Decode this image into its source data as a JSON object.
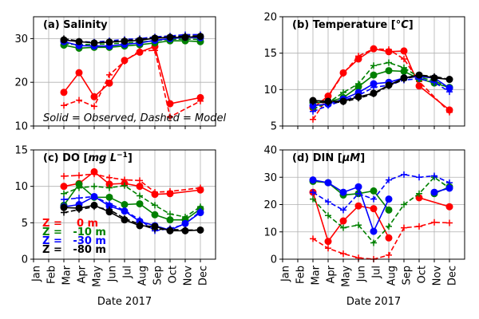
{
  "colors": {
    "z0": "#ff0000",
    "z10": "#008000",
    "z30": "#0000ff",
    "z80": "#000000",
    "grid": "#b0b0b0"
  },
  "figure": {
    "note": "Solid = Observed, Dashed = Model",
    "legend": [
      {
        "label": "Z =    0 m",
        "color_key": "z0"
      },
      {
        "label": "Z =   -10 m",
        "color_key": "z10"
      },
      {
        "label": "Z =   -30 m",
        "color_key": "z30"
      },
      {
        "label": "Z =   -80 m",
        "color_key": "z80"
      }
    ],
    "month_labels": [
      "Jan",
      "Feb",
      "Mar",
      "Apr",
      "May",
      "Jun",
      "Jul",
      "Aug",
      "Sep",
      "Oct",
      "Nov",
      "Dec"
    ]
  },
  "chart_data": [
    {
      "type": "line",
      "title": "(a) Salinity",
      "title_parts": [
        "(a) Salinity"
      ],
      "xlabel": "",
      "ylabel": "",
      "ylim": [
        10,
        35
      ],
      "yticks": [
        10,
        20,
        30
      ],
      "grid": true,
      "series": [
        {
          "color_key": "z0",
          "style": "observed",
          "x": [
            3,
            4,
            5,
            6,
            7,
            8,
            9,
            10,
            12
          ],
          "y": [
            17.7,
            22.2,
            16.7,
            19.8,
            25.0,
            26.9,
            28.2,
            15.1,
            16.5
          ]
        },
        {
          "color_key": "z0",
          "style": "model",
          "x": [
            3,
            4,
            5,
            6,
            7,
            8,
            9,
            10,
            12
          ],
          "y": [
            14.7,
            15.9,
            14.5,
            21.7,
            24.8,
            27.2,
            27.3,
            12.1,
            15.7
          ]
        },
        {
          "color_key": "z10",
          "style": "observed",
          "x": [
            3,
            4,
            5,
            6,
            7,
            8,
            9,
            10,
            11,
            12
          ],
          "y": [
            28.5,
            27.8,
            28.0,
            28.0,
            28.3,
            28.6,
            29.0,
            29.5,
            29.5,
            29.3
          ]
        },
        {
          "color_key": "z10",
          "style": "model",
          "x": [
            3,
            4,
            5,
            6,
            7,
            8,
            9,
            10,
            11,
            12
          ],
          "y": [
            28.8,
            28.6,
            28.7,
            28.8,
            29.0,
            29.2,
            29.5,
            29.8,
            29.9,
            29.8
          ]
        },
        {
          "color_key": "z30",
          "style": "observed",
          "x": [
            3,
            4,
            5,
            6,
            7,
            8,
            9,
            10,
            11,
            12
          ],
          "y": [
            29.3,
            28.4,
            28.3,
            28.3,
            28.7,
            29.0,
            29.6,
            30.0,
            30.3,
            30.2
          ]
        },
        {
          "color_key": "z30",
          "style": "model",
          "x": [
            3,
            4,
            5,
            6,
            7,
            8,
            9,
            10,
            11,
            12
          ],
          "y": [
            29.8,
            29.3,
            29.2,
            29.5,
            29.8,
            30.0,
            30.4,
            30.6,
            30.9,
            30.9
          ]
        },
        {
          "color_key": "z80",
          "style": "observed",
          "x": [
            3,
            4,
            5,
            6,
            7,
            8,
            9,
            10,
            11,
            12
          ],
          "y": [
            29.7,
            29.3,
            29.0,
            29.2,
            29.4,
            29.6,
            30.1,
            30.3,
            30.3,
            30.5
          ]
        },
        {
          "color_key": "z80",
          "style": "model",
          "x": [
            3,
            4,
            5,
            6,
            7,
            8,
            9,
            10,
            11,
            12
          ],
          "y": [
            30.0,
            29.4,
            29.0,
            29.3,
            29.6,
            29.8,
            30.2,
            30.4,
            30.6,
            30.6
          ]
        }
      ]
    },
    {
      "type": "line",
      "title": "(b) Temperature [°C]",
      "title_parts": [
        "(b) Temperature [",
        "°C",
        "]"
      ],
      "xlabel": "",
      "ylabel": "",
      "ylim": [
        5,
        20
      ],
      "yticks": [
        5,
        10,
        15,
        20
      ],
      "grid": true,
      "series": [
        {
          "color_key": "z0",
          "style": "observed",
          "x": [
            3,
            4,
            5,
            6,
            7,
            8,
            9,
            10,
            12
          ],
          "y": [
            7.5,
            9.1,
            12.3,
            14.2,
            15.6,
            15.2,
            15.3,
            10.5,
            7.2
          ]
        },
        {
          "color_key": "z0",
          "style": "model",
          "x": [
            3,
            4,
            5,
            6,
            7,
            8,
            9,
            10,
            12
          ],
          "y": [
            5.9,
            9.0,
            12.2,
            14.6,
            15.6,
            15.5,
            14.2,
            11.1,
            6.9
          ]
        },
        {
          "color_key": "z10",
          "style": "observed",
          "x": [
            3,
            4,
            5,
            6,
            7,
            8,
            9,
            10,
            11,
            12
          ],
          "y": [
            8.2,
            8.3,
            8.9,
            10.4,
            12.0,
            12.6,
            12.5,
            11.5,
            10.9,
            10.3
          ]
        },
        {
          "color_key": "z10",
          "style": "model",
          "x": [
            3,
            4,
            5,
            6,
            7,
            8,
            9,
            10,
            11,
            12
          ],
          "y": [
            7.3,
            8.2,
            9.6,
            10.8,
            13.3,
            13.7,
            13.0,
            11.7,
            11.2,
            10.3
          ]
        },
        {
          "color_key": "z30",
          "style": "observed",
          "x": [
            3,
            4,
            5,
            6,
            7,
            8,
            9,
            10,
            11,
            12
          ],
          "y": [
            7.8,
            8.0,
            8.7,
            9.6,
            10.8,
            11.0,
            11.6,
            11.8,
            11.6,
            10.2
          ]
        },
        {
          "color_key": "z30",
          "style": "model",
          "x": [
            3,
            4,
            5,
            6,
            7,
            8,
            9,
            10,
            11,
            12
          ],
          "y": [
            7.0,
            7.8,
            8.5,
            9.2,
            10.3,
            10.6,
            11.3,
            11.5,
            11.0,
            9.7
          ]
        },
        {
          "color_key": "z80",
          "style": "observed",
          "x": [
            3,
            4,
            5,
            6,
            7,
            8,
            9,
            10,
            11,
            12
          ],
          "y": [
            8.5,
            8.4,
            8.4,
            9.0,
            9.5,
            10.6,
            11.6,
            12.0,
            11.6,
            11.4
          ]
        },
        {
          "color_key": "z80",
          "style": "model",
          "x": [
            3,
            4,
            5,
            6,
            7,
            8,
            9,
            10,
            11,
            12
          ],
          "y": [
            8.3,
            8.2,
            8.3,
            8.8,
            9.4,
            10.5,
            11.4,
            12.0,
            11.8,
            11.4
          ]
        }
      ]
    },
    {
      "type": "line",
      "title": "(c) DO [mg L−1]",
      "title_parts": [
        "(c) DO [",
        "mg L",
        "−1",
        "]"
      ],
      "xlabel": "Date 2017",
      "ylabel": "",
      "ylim": [
        0,
        15
      ],
      "yticks": [
        0,
        5,
        10,
        15
      ],
      "grid": true,
      "series": [
        {
          "color_key": "z0",
          "style": "observed",
          "x": [
            3,
            4,
            5,
            6,
            7,
            8,
            9,
            10,
            12
          ],
          "y": [
            10.0,
            10.4,
            12.0,
            10.3,
            10.4,
            10.0,
            8.9,
            9.0,
            9.5
          ]
        },
        {
          "color_key": "z0",
          "style": "model",
          "x": [
            3,
            4,
            5,
            6,
            7,
            8,
            9,
            10,
            12
          ],
          "y": [
            11.4,
            11.5,
            11.7,
            11.2,
            10.9,
            10.8,
            9.2,
            9.3,
            9.8
          ]
        },
        {
          "color_key": "z10",
          "style": "observed",
          "x": [
            3,
            4,
            5,
            6,
            7,
            8,
            9,
            10,
            11,
            12
          ],
          "y": [
            7.4,
            10.3,
            8.5,
            8.5,
            7.5,
            7.6,
            6.1,
            5.4,
            5.4,
            6.9
          ]
        },
        {
          "color_key": "z10",
          "style": "model",
          "x": [
            3,
            4,
            5,
            6,
            7,
            8,
            9,
            10,
            11,
            12
          ],
          "y": [
            9.0,
            9.8,
            10.0,
            9.8,
            10.1,
            8.7,
            7.4,
            6.2,
            5.8,
            7.2
          ]
        },
        {
          "color_key": "z30",
          "style": "observed",
          "x": [
            3,
            4,
            5,
            6,
            7,
            8,
            9,
            10,
            11,
            12
          ],
          "y": [
            7.2,
            7.5,
            8.6,
            7.3,
            6.6,
            5.2,
            4.6,
            4.0,
            4.9,
            6.4
          ]
        },
        {
          "color_key": "z30",
          "style": "model",
          "x": [
            3,
            4,
            5,
            6,
            7,
            8,
            9,
            10,
            11,
            12
          ],
          "y": [
            8.2,
            8.4,
            8.6,
            7.6,
            6.7,
            5.4,
            3.9,
            4.2,
            4.8,
            6.6
          ]
        },
        {
          "color_key": "z80",
          "style": "observed",
          "x": [
            3,
            4,
            5,
            6,
            7,
            8,
            9,
            10,
            11,
            12
          ],
          "y": [
            7.1,
            7.0,
            7.4,
            6.5,
            5.4,
            4.6,
            4.5,
            3.9,
            3.9,
            4.0
          ]
        },
        {
          "color_key": "z80",
          "style": "model",
          "x": [
            3,
            4,
            5,
            6,
            7,
            8,
            9,
            10,
            11,
            12
          ],
          "y": [
            6.4,
            6.8,
            7.2,
            6.8,
            5.6,
            4.8,
            4.1,
            4.1,
            4.0,
            4.0
          ]
        }
      ]
    },
    {
      "type": "line",
      "title": "(d) DIN [μM]",
      "title_parts": [
        "(d) DIN  [",
        "μM",
        "]"
      ],
      "xlabel": "Date 2017",
      "ylabel": "",
      "ylim": [
        0,
        40
      ],
      "yticks": [
        0,
        10,
        20,
        30,
        40
      ],
      "grid": true,
      "series": [
        {
          "color_key": "z0",
          "style": "observed",
          "x": [
            3,
            4,
            5,
            6,
            7,
            8,
            9,
            10,
            12
          ],
          "y": [
            24.5,
            6.5,
            14.0,
            19.5,
            18.5,
            7.8,
            null,
            22.5,
            19.2
          ]
        },
        {
          "color_key": "z0",
          "style": "model",
          "x": [
            3,
            4,
            5,
            6,
            7,
            8,
            9,
            10,
            11,
            12
          ],
          "y": [
            7.5,
            4.0,
            2.0,
            0.5,
            0.0,
            1.5,
            11.5,
            12.0,
            13.5,
            13.3
          ]
        },
        {
          "color_key": "z10",
          "style": "observed",
          "x": [
            3,
            4,
            5,
            6,
            7,
            8,
            9,
            10,
            11,
            12
          ],
          "y": [
            28.5,
            28.0,
            23.5,
            24.0,
            25.0,
            18.0,
            null,
            null,
            24.0,
            26.5
          ]
        },
        {
          "color_key": "z10",
          "style": "model",
          "x": [
            3,
            4,
            5,
            6,
            7,
            8,
            9,
            10,
            11,
            12
          ],
          "y": [
            22.0,
            16.0,
            11.5,
            12.5,
            6.0,
            12.0,
            20.0,
            24.0,
            30.0,
            26.0
          ]
        },
        {
          "color_key": "z30",
          "style": "observed",
          "x": [
            3,
            4,
            5,
            6,
            7,
            8,
            9,
            10,
            11,
            12
          ],
          "y": [
            29.0,
            28.0,
            24.5,
            26.5,
            10.2,
            22.0,
            null,
            null,
            24.5,
            26.0
          ]
        },
        {
          "color_key": "z30",
          "style": "model",
          "x": [
            3,
            4,
            5,
            6,
            7,
            8,
            9,
            10,
            11,
            12
          ],
          "y": [
            24.5,
            21.0,
            18.0,
            24.0,
            22.0,
            29.0,
            31.0,
            30.0,
            30.5,
            28.0
          ]
        }
      ]
    }
  ]
}
